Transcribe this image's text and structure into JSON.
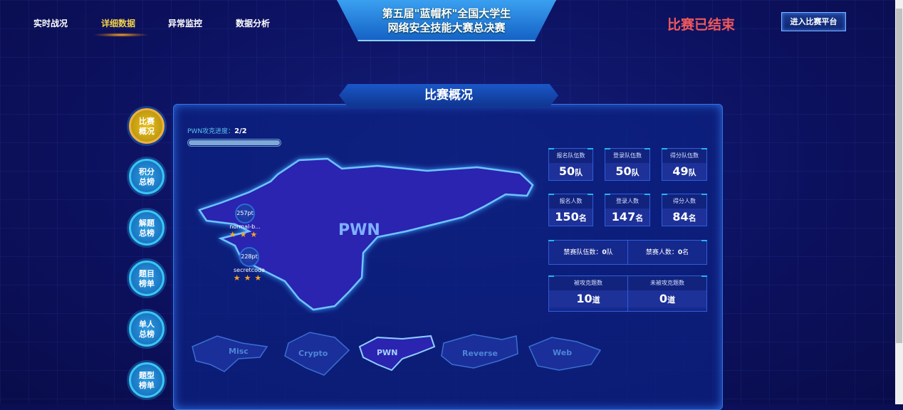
{
  "nav": [
    "实时战况",
    "详细数据",
    "异常监控",
    "数据分析"
  ],
  "nav_active": 1,
  "title": {
    "line1": "第五届\"蓝帽杯\"全国大学生",
    "line2": "网络安全技能大赛总决赛"
  },
  "status": "比赛已结束",
  "enter_button": "进入比赛平台",
  "panel_title": "比赛概况",
  "sidebar": [
    {
      "l1": "比赛",
      "l2": "概况"
    },
    {
      "l1": "积分",
      "l2": "总榜"
    },
    {
      "l1": "解题",
      "l2": "总榜"
    },
    {
      "l1": "题目",
      "l2": "榜单"
    },
    {
      "l1": "单人",
      "l2": "总榜"
    },
    {
      "l1": "题型",
      "l2": "榜单"
    }
  ],
  "progress": {
    "label": "PWN攻克进度：",
    "value": "2/2",
    "fraction": 1.0
  },
  "map": {
    "label": "PWN",
    "challenges": [
      {
        "points": "257pt",
        "name": "normal-b...",
        "stars": "★★★"
      },
      {
        "points": "228pt",
        "name": "secretcode",
        "stars": "★★★"
      }
    ]
  },
  "stats": {
    "teams": [
      {
        "label": "报名队伍数",
        "value": "50",
        "unit": "队"
      },
      {
        "label": "登录队伍数",
        "value": "50",
        "unit": "队"
      },
      {
        "label": "得分队伍数",
        "value": "49",
        "unit": "队"
      }
    ],
    "people": [
      {
        "label": "报名人数",
        "value": "150",
        "unit": "名"
      },
      {
        "label": "登录人数",
        "value": "147",
        "unit": "名"
      },
      {
        "label": "得分人数",
        "value": "84",
        "unit": "名"
      }
    ],
    "banned": [
      {
        "label": "禁赛队伍数：",
        "value": "0",
        "unit": "队"
      },
      {
        "label": "禁赛人数：",
        "value": "0",
        "unit": "名"
      }
    ],
    "solved": [
      {
        "label": "被攻克题数",
        "value": "10",
        "unit": "道"
      },
      {
        "label": "未被攻克题数",
        "value": "0",
        "unit": "道"
      }
    ]
  },
  "categories": [
    "Misc",
    "Crypto",
    "PWN",
    "Reverse",
    "Web"
  ],
  "category_active": 2,
  "colors": {
    "background": "#0d1262",
    "accent": "#2c7ae8",
    "active_nav": "#f3d24a",
    "status": "#f0585c",
    "stars": "#f5a623"
  }
}
